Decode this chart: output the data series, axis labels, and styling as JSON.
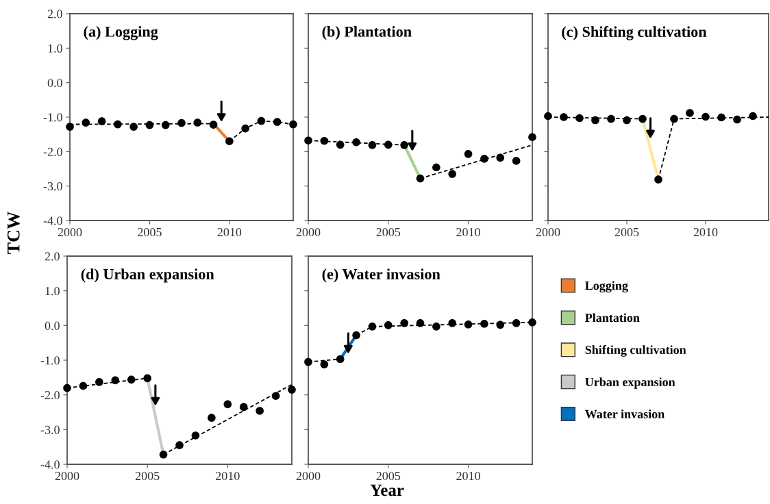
{
  "chart_data": [
    {
      "type": "scatter",
      "title": "(a) Logging",
      "ylabel": "TCW",
      "x": [
        2000,
        2001,
        2002,
        2003,
        2004,
        2005,
        2006,
        2007,
        2008,
        2009,
        2010,
        2011,
        2012,
        2013,
        2014
      ],
      "xlim": [
        2000,
        2014
      ],
      "xticks": [
        2000,
        2005,
        2010
      ],
      "ylim": [
        -4,
        2
      ],
      "yticks": [
        {
          "value": -4,
          "label": "-4.0"
        },
        {
          "value": -3,
          "label": "-3.0"
        },
        {
          "value": -2,
          "label": "-2.0"
        },
        {
          "value": -1,
          "label": "-1.0"
        },
        {
          "value": 0,
          "label": "0.0"
        },
        {
          "value": 1,
          "label": "1.0"
        },
        {
          "value": 2,
          "label": "2.0"
        }
      ],
      "grid": false,
      "legend": "bottom right",
      "series": [
        {
          "type": "line",
          "x": [
            2000,
            2009
          ],
          "values": [
            -1.21,
            -1.19
          ],
          "color": "#000000",
          "line_style": "dashed"
        },
        {
          "type": "line",
          "name": "Logging",
          "x": [
            2009,
            2010
          ],
          "values": [
            -1.19,
            -1.7
          ],
          "color": "#ed7d31",
          "line_style": "solid"
        },
        {
          "type": "line",
          "x": [
            2010,
            2011,
            2012,
            2013,
            2014
          ],
          "values": [
            -1.7,
            -1.33,
            -1.11,
            -1.14,
            -1.21
          ],
          "color": "#000000",
          "line_style": "dashed"
        },
        {
          "color": "#000000",
          "marker": "circle",
          "values": [
            -1.28,
            -1.16,
            -1.12,
            -1.21,
            -1.28,
            -1.23,
            -1.23,
            -1.17,
            -1.16,
            -1.22,
            -1.7,
            -1.33,
            -1.11,
            -1.14,
            -1.21
          ]
        }
      ]
    },
    {
      "type": "scatter",
      "title": "(b) Plantation",
      "x": [
        2000,
        2001,
        2002,
        2003,
        2004,
        2005,
        2006,
        2007,
        2008,
        2009,
        2010,
        2011,
        2012,
        2013,
        2014
      ],
      "xlim": [
        2000,
        2014
      ],
      "xticks": [
        2000,
        2005,
        2010
      ],
      "ylim": [
        -4,
        2
      ],
      "yticks": [
        -4,
        -3,
        -2,
        -1,
        0,
        1,
        2
      ],
      "tick_labels": "x",
      "grid": false,
      "legend": "bottom right",
      "series": [
        {
          "type": "line",
          "x": [
            2000,
            2006
          ],
          "values": [
            -1.68,
            -1.81
          ],
          "color": "#000000",
          "line_style": "dashed"
        },
        {
          "type": "line",
          "name": "Plantation",
          "x": [
            2006,
            2007
          ],
          "values": [
            -1.81,
            -2.78
          ],
          "color": "#a9d18e",
          "line_style": "solid"
        },
        {
          "type": "line",
          "x": [
            2007,
            2014
          ],
          "values": [
            -2.78,
            -1.81
          ],
          "color": "#000000",
          "line_style": "dashed"
        },
        {
          "color": "#000000",
          "marker": "circle",
          "values": [
            -1.68,
            -1.69,
            -1.8,
            -1.73,
            -1.81,
            -1.8,
            -1.81,
            -2.78,
            -2.46,
            -2.65,
            -2.07,
            -2.21,
            -2.18,
            -2.27,
            -1.58
          ]
        }
      ]
    },
    {
      "type": "scatter",
      "title": "(c) Shifting cultivation",
      "x": [
        2000,
        2001,
        2002,
        2003,
        2004,
        2005,
        2006,
        2007,
        2008,
        2009,
        2010,
        2011,
        2012,
        2013
      ],
      "xlim": [
        2000,
        2014
      ],
      "xticks": [
        2000,
        2005,
        2010
      ],
      "ylim": [
        -4,
        2
      ],
      "yticks": [
        -4,
        -3,
        -2,
        -1,
        0,
        1,
        2
      ],
      "tick_labels": "x",
      "grid": false,
      "legend": "bottom",
      "series": [
        {
          "type": "line",
          "x": [
            2000,
            2006
          ],
          "values": [
            -1.0,
            -1.05
          ],
          "color": "#000000",
          "line_style": "dashed"
        },
        {
          "type": "line",
          "name": "Shifting cultivation",
          "x": [
            2006,
            2007
          ],
          "values": [
            -1.05,
            -2.81
          ],
          "color": "#ffe699",
          "line_style": "solid"
        },
        {
          "type": "line",
          "x": [
            2007,
            2008,
            2014
          ],
          "values": [
            -2.81,
            -1.05,
            -1.0
          ],
          "color": "#000000",
          "line_style": "dashed"
        },
        {
          "color": "#000000",
          "marker": "circle",
          "values": [
            -0.97,
            -1.0,
            -1.03,
            -1.09,
            -1.05,
            -1.09,
            -1.05,
            -2.81,
            -1.05,
            -0.88,
            -0.99,
            -1.01,
            -1.07,
            -0.97
          ]
        }
      ]
    },
    {
      "type": "scatter",
      "title": "(d) Urban expansion",
      "x": [
        2000,
        2001,
        2002,
        2003,
        2004,
        2005,
        2006,
        2007,
        2008,
        2009,
        2010,
        2011,
        2012,
        2013,
        2014
      ],
      "xlim": [
        2000,
        2014
      ],
      "xticks": [
        2000,
        2005,
        2010
      ],
      "ylim": [
        -4,
        2
      ],
      "yticks": [
        {
          "value": -4,
          "label": "-4.0"
        },
        {
          "value": -3,
          "label": "-3.0"
        },
        {
          "value": -2,
          "label": "-2.0"
        },
        {
          "value": -1,
          "label": "-1.0"
        },
        {
          "value": 0,
          "label": "0.0"
        },
        {
          "value": 1,
          "label": "1.0"
        },
        {
          "value": 2,
          "label": "2.0"
        }
      ],
      "grid": false,
      "legend": "right",
      "series": [
        {
          "type": "line",
          "x": [
            2000,
            2005
          ],
          "values": [
            -1.8,
            -1.52
          ],
          "color": "#000000",
          "line_style": "dashed"
        },
        {
          "type": "line",
          "name": "Urban expansion",
          "x": [
            2005,
            2006
          ],
          "values": [
            -1.52,
            -3.72
          ],
          "color": "#c9c9c9",
          "line_style": "solid"
        },
        {
          "type": "line",
          "x": [
            2006,
            2014
          ],
          "values": [
            -3.72,
            -1.7
          ],
          "color": "#000000",
          "line_style": "dashed"
        },
        {
          "color": "#000000",
          "marker": "circle",
          "values": [
            -1.8,
            -1.74,
            -1.63,
            -1.58,
            -1.56,
            -1.52,
            -3.72,
            -3.45,
            -3.17,
            -2.66,
            -2.27,
            -2.35,
            -2.46,
            -2.03,
            -1.85
          ]
        }
      ]
    },
    {
      "type": "scatter",
      "title": "(e) Water invasion",
      "xlabel": "Year",
      "x": [
        2000,
        2001,
        2002,
        2003,
        2004,
        2005,
        2006,
        2007,
        2008,
        2009,
        2010,
        2011,
        2012,
        2013,
        2014
      ],
      "xlim": [
        2000,
        2014
      ],
      "xticks": [
        2000,
        2005,
        2010
      ],
      "ylim": [
        -4,
        2
      ],
      "yticks": [
        -4,
        -3,
        -2,
        -1,
        0,
        1,
        2
      ],
      "tick_labels": "x",
      "grid": false,
      "legend": "right",
      "series": [
        {
          "type": "line",
          "x": [
            2000,
            2002
          ],
          "values": [
            -1.05,
            -0.97
          ],
          "color": "#000000",
          "line_style": "dashed"
        },
        {
          "type": "line",
          "name": "Water invasion",
          "x": [
            2002,
            2003
          ],
          "values": [
            -0.97,
            -0.28
          ],
          "color": "#0070c0",
          "line_style": "solid"
        },
        {
          "type": "line",
          "x": [
            2003,
            2004,
            2014
          ],
          "values": [
            -0.28,
            -0.03,
            0.09
          ],
          "color": "#000000",
          "line_style": "dashed"
        },
        {
          "color": "#000000",
          "marker": "circle",
          "values": [
            -1.05,
            -1.12,
            -0.97,
            -0.28,
            -0.03,
            0.01,
            0.07,
            0.07,
            -0.03,
            0.07,
            0.03,
            0.05,
            0.02,
            0.07,
            0.09
          ]
        }
      ]
    }
  ]
}
